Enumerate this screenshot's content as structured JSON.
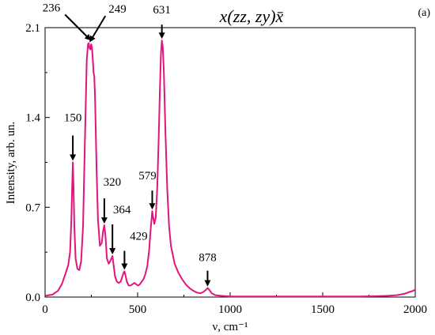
{
  "panel_label": "(a)",
  "formula": "x(zz, zy)x̄",
  "chart_data": {
    "type": "line",
    "title": "",
    "xlabel": "ν, cm⁻¹",
    "ylabel": "Intensity, arb. un.",
    "xlim": [
      0,
      2000
    ],
    "ylim": [
      0,
      2.1
    ],
    "x_ticks": [
      0,
      500,
      1000,
      1500,
      2000
    ],
    "x_tick_labels": [
      "0",
      "500",
      "1000",
      "1500",
      "2000"
    ],
    "y_ticks": [
      0,
      0.7,
      1.4,
      2.1
    ],
    "y_tick_labels": [
      "0.0",
      "0.7",
      "1.4",
      "2.1"
    ],
    "grid": false,
    "line_color": "#e0157f",
    "series": [
      {
        "name": "",
        "x": [
          0,
          40,
          70,
          90,
          110,
          125,
          135,
          142,
          146,
          150,
          154,
          158,
          165,
          175,
          185,
          195,
          205,
          215,
          225,
          232,
          236,
          240,
          245,
          249,
          253,
          258,
          262,
          266,
          270,
          278,
          286,
          296,
          306,
          314,
          320,
          326,
          334,
          344,
          352,
          358,
          364,
          370,
          378,
          388,
          398,
          408,
          418,
          424,
          429,
          434,
          442,
          452,
          462,
          472,
          482,
          492,
          502,
          512,
          522,
          532,
          542,
          552,
          562,
          570,
          576,
          579,
          583,
          590,
          598,
          606,
          614,
          620,
          626,
          631,
          636,
          642,
          650,
          660,
          670,
          680,
          700,
          720,
          740,
          760,
          780,
          800,
          820,
          840,
          855,
          868,
          878,
          888,
          900,
          920,
          950,
          1000,
          1100,
          1200,
          1300,
          1400,
          1500,
          1600,
          1700,
          1800,
          1850,
          1900,
          1940,
          1970,
          1990,
          2000
        ],
        "y": [
          0.01,
          0.02,
          0.05,
          0.1,
          0.18,
          0.25,
          0.35,
          0.6,
          0.85,
          1.05,
          0.85,
          0.55,
          0.3,
          0.22,
          0.21,
          0.28,
          0.55,
          1.2,
          1.85,
          1.97,
          1.98,
          1.94,
          1.93,
          1.97,
          1.95,
          1.85,
          1.75,
          1.72,
          1.55,
          1.0,
          0.6,
          0.4,
          0.42,
          0.52,
          0.56,
          0.48,
          0.3,
          0.26,
          0.28,
          0.3,
          0.32,
          0.25,
          0.16,
          0.12,
          0.11,
          0.12,
          0.16,
          0.19,
          0.2,
          0.17,
          0.12,
          0.09,
          0.09,
          0.1,
          0.11,
          0.1,
          0.09,
          0.1,
          0.12,
          0.14,
          0.18,
          0.24,
          0.36,
          0.52,
          0.62,
          0.67,
          0.63,
          0.57,
          0.62,
          0.85,
          1.25,
          1.6,
          1.9,
          2.0,
          1.95,
          1.75,
          1.3,
          0.85,
          0.55,
          0.4,
          0.26,
          0.19,
          0.14,
          0.1,
          0.07,
          0.05,
          0.035,
          0.03,
          0.04,
          0.055,
          0.07,
          0.055,
          0.03,
          0.015,
          0.01,
          0.005,
          0.005,
          0.005,
          0.005,
          0.005,
          0.005,
          0.005,
          0.005,
          0.008,
          0.01,
          0.015,
          0.025,
          0.04,
          0.05,
          0.06
        ]
      }
    ],
    "annotations": [
      {
        "text": "150",
        "x": 150,
        "y": 1.05
      },
      {
        "text": "236",
        "x": 236,
        "y": 1.98
      },
      {
        "text": "249",
        "x": 249,
        "y": 1.97
      },
      {
        "text": "320",
        "x": 320,
        "y": 0.56
      },
      {
        "text": "364",
        "x": 364,
        "y": 0.32
      },
      {
        "text": "429",
        "x": 429,
        "y": 0.2
      },
      {
        "text": "579",
        "x": 579,
        "y": 0.67
      },
      {
        "text": "631",
        "x": 631,
        "y": 2.0
      },
      {
        "text": "878",
        "x": 878,
        "y": 0.07
      }
    ]
  }
}
